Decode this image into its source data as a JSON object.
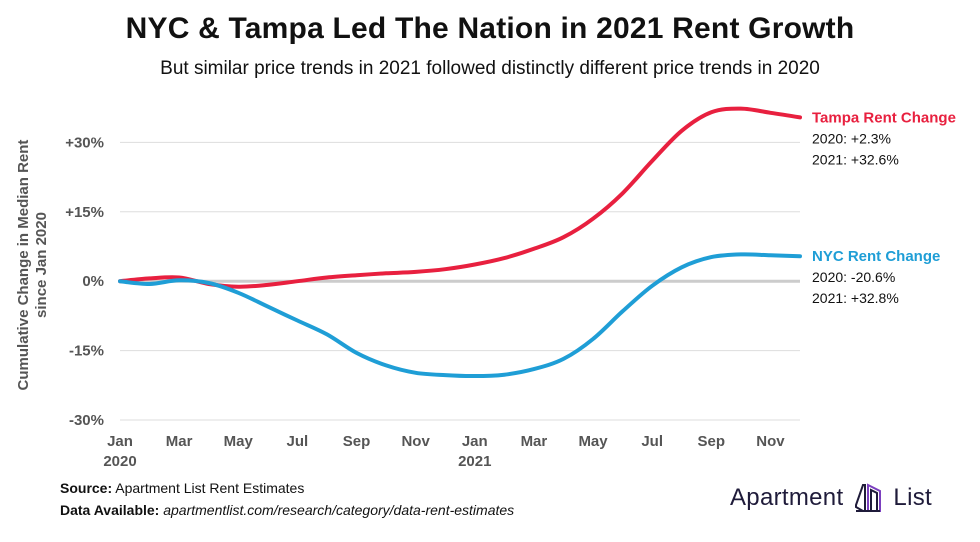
{
  "title": "NYC & Tampa Led The Nation in 2021 Rent Growth",
  "subtitle": "But similar price trends in 2021 followed distinctly different price trends in 2020",
  "footer": {
    "source_label": "Source:",
    "source_text": "Apartment List Rent Estimates",
    "data_label": "Data Available:",
    "data_text": "apartmentlist.com/research/category/data-rent-estimates"
  },
  "logo": {
    "left": "Apartment",
    "right": "List",
    "icon": "apartmentlist-logo-icon"
  },
  "colors": {
    "tampa": "#e8203f",
    "nyc": "#1f9ed6",
    "grid": "#dddddd",
    "zero": "#cccccc"
  },
  "chart_data": {
    "type": "line",
    "ylabel": "Cumulative Change in Median Rent since Jan 2020",
    "ylim": [
      -30,
      37
    ],
    "grid": true,
    "yticks": [
      {
        "value": 30,
        "label": "+30%"
      },
      {
        "value": 15,
        "label": "+15%"
      },
      {
        "value": 0,
        "label": "0%"
      },
      {
        "value": -15,
        "label": "-15%"
      },
      {
        "value": -30,
        "label": "-30%"
      }
    ],
    "xticks": [
      {
        "month": 0,
        "label": "Jan",
        "sublabel": "2020"
      },
      {
        "month": 2,
        "label": "Mar",
        "sublabel": ""
      },
      {
        "month": 4,
        "label": "May",
        "sublabel": ""
      },
      {
        "month": 6,
        "label": "Jul",
        "sublabel": ""
      },
      {
        "month": 8,
        "label": "Sep",
        "sublabel": ""
      },
      {
        "month": 10,
        "label": "Nov",
        "sublabel": ""
      },
      {
        "month": 12,
        "label": "Jan",
        "sublabel": "2021"
      },
      {
        "month": 14,
        "label": "Mar",
        "sublabel": ""
      },
      {
        "month": 16,
        "label": "May",
        "sublabel": ""
      },
      {
        "month": 18,
        "label": "Jul",
        "sublabel": ""
      },
      {
        "month": 20,
        "label": "Sep",
        "sublabel": ""
      },
      {
        "month": 22,
        "label": "Nov",
        "sublabel": ""
      }
    ],
    "x": [
      "Jan 2020",
      "Feb 2020",
      "Mar 2020",
      "Apr 2020",
      "May 2020",
      "Jun 2020",
      "Jul 2020",
      "Aug 2020",
      "Sep 2020",
      "Oct 2020",
      "Nov 2020",
      "Dec 2020",
      "Jan 2021",
      "Feb 2021",
      "Mar 2021",
      "Apr 2021",
      "May 2021",
      "Jun 2021",
      "Jul 2021",
      "Aug 2021",
      "Sep 2021",
      "Oct 2021",
      "Nov 2021",
      "Dec 2021"
    ],
    "series": [
      {
        "name": "Tampa Rent Change",
        "key": "tampa",
        "stats": [
          "2020: +2.3%",
          "2021: +32.6%"
        ],
        "values": [
          0,
          0.6,
          0.8,
          -0.6,
          -1.2,
          -0.8,
          0,
          0.8,
          1.3,
          1.7,
          2.0,
          2.6,
          3.6,
          5.0,
          7.0,
          9.5,
          13.5,
          19.0,
          26.0,
          32.5,
          36.5,
          37.3,
          36.4,
          35.4
        ]
      },
      {
        "name": "NYC Rent Change",
        "key": "nyc",
        "stats": [
          "2020: -20.6%",
          "2021: +32.8%"
        ],
        "values": [
          0,
          -0.6,
          0.2,
          -0.4,
          -2.5,
          -5.5,
          -8.5,
          -11.5,
          -15.5,
          -18.2,
          -19.8,
          -20.3,
          -20.5,
          -20.2,
          -19.0,
          -16.8,
          -12.5,
          -6.5,
          -1.0,
          3.0,
          5.2,
          5.8,
          5.6,
          5.4
        ]
      }
    ]
  }
}
